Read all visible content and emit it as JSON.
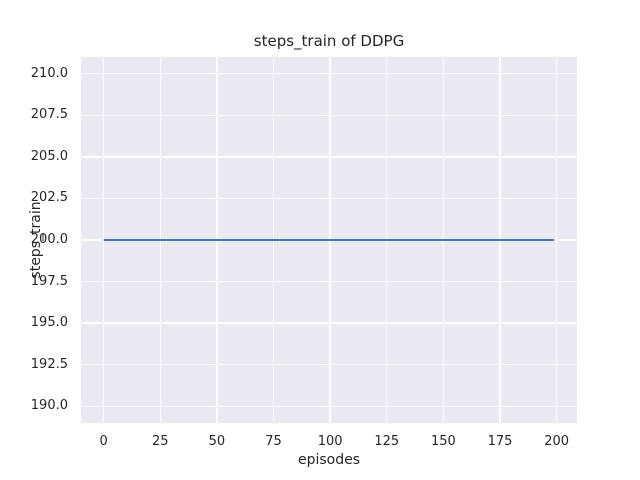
{
  "figure": {
    "background_color": "#ffffff",
    "text_color": "#262626"
  },
  "chart_data": {
    "type": "line",
    "title": "steps_train of DDPG",
    "xlabel": "episodes",
    "ylabel": "steps_train",
    "xlim": [
      -10,
      209
    ],
    "ylim": [
      189,
      211
    ],
    "grid": true,
    "legend_position": "none",
    "plot_background_color": "#eaeaf2",
    "grid_color": "#ffffff",
    "xticks": [
      {
        "value": 0,
        "label": "0"
      },
      {
        "value": 25,
        "label": "25"
      },
      {
        "value": 50,
        "label": "50"
      },
      {
        "value": 75,
        "label": "75"
      },
      {
        "value": 100,
        "label": "100"
      },
      {
        "value": 125,
        "label": "125"
      },
      {
        "value": 150,
        "label": "150"
      },
      {
        "value": 175,
        "label": "175"
      },
      {
        "value": 200,
        "label": "200"
      }
    ],
    "yticks": [
      {
        "value": 210.0,
        "label": "210.0"
      },
      {
        "value": 207.5,
        "label": "207.5"
      },
      {
        "value": 205.0,
        "label": "205.0"
      },
      {
        "value": 202.5,
        "label": "202.5"
      },
      {
        "value": 200.0,
        "label": "200.0"
      },
      {
        "value": 197.5,
        "label": "197.5"
      },
      {
        "value": 195.0,
        "label": "195.0"
      },
      {
        "value": 192.5,
        "label": "192.5"
      },
      {
        "value": 190.0,
        "label": "190.0"
      }
    ],
    "series": [
      {
        "name": "steps_train",
        "color": "#4c72b0",
        "line_width": 2,
        "x": [
          0,
          199
        ],
        "y": [
          200,
          200
        ],
        "note": "constant value 200 for every episode from 0 to 199"
      }
    ]
  }
}
